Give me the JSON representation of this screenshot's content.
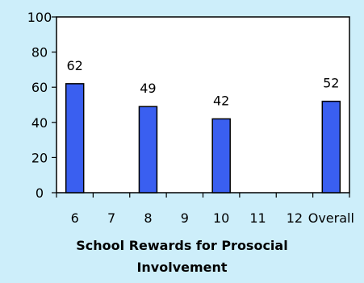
{
  "chart_data": {
    "type": "bar",
    "categories": [
      "6",
      "7",
      "8",
      "9",
      "10",
      "11",
      "12",
      "Overall"
    ],
    "values": [
      62,
      null,
      49,
      null,
      42,
      null,
      null,
      52
    ],
    "data_labels": [
      "62",
      "",
      "49",
      "",
      "42",
      "",
      "",
      "52"
    ],
    "ylim": [
      0,
      100
    ],
    "yticks": [
      "0",
      "20",
      "40",
      "60",
      "80",
      "100"
    ],
    "title_lines": [
      "School Rewards for Prosocial",
      "Involvement"
    ],
    "xlabel": "",
    "ylabel": "",
    "grid": false,
    "legend": "none",
    "colors": {
      "bar_fill": "#3a5ff0",
      "bar_stroke": "#000000",
      "plot_background": "#ffffff",
      "page_background": "#cdeefa"
    }
  }
}
